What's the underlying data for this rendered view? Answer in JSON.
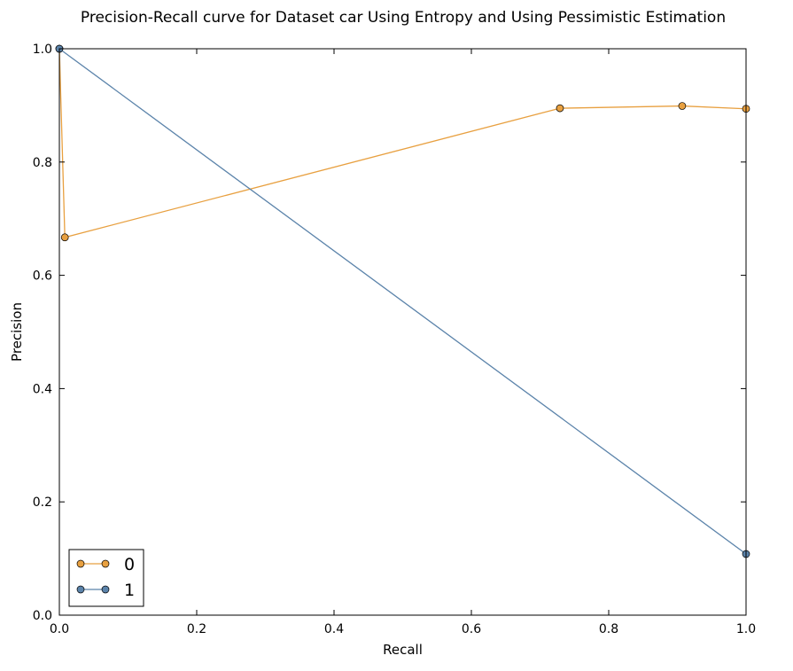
{
  "chart_data": {
    "type": "line",
    "title": "Precision-Recall curve for Dataset car Using Entropy and Using Pessimistic Estimation",
    "xlabel": "Recall",
    "ylabel": "Precision",
    "xlim": [
      0.0,
      1.0
    ],
    "ylim": [
      0.0,
      1.0
    ],
    "xticks": [
      "0.0",
      "0.2",
      "0.4",
      "0.6",
      "0.8",
      "1.0"
    ],
    "yticks": [
      "0.0",
      "0.2",
      "0.4",
      "0.6",
      "0.8",
      "1.0"
    ],
    "grid": false,
    "legend_position": "lower-left",
    "series": [
      {
        "name": "0",
        "color": "#e8a040",
        "marker": "circle",
        "x": [
          0.0,
          0.008,
          0.729,
          0.907,
          1.0
        ],
        "y": [
          1.0,
          0.667,
          0.895,
          0.899,
          0.894
        ]
      },
      {
        "name": "1",
        "color": "#5b83aa",
        "marker": "circle",
        "x": [
          0.0,
          1.0
        ],
        "y": [
          1.0,
          0.108
        ]
      }
    ]
  }
}
